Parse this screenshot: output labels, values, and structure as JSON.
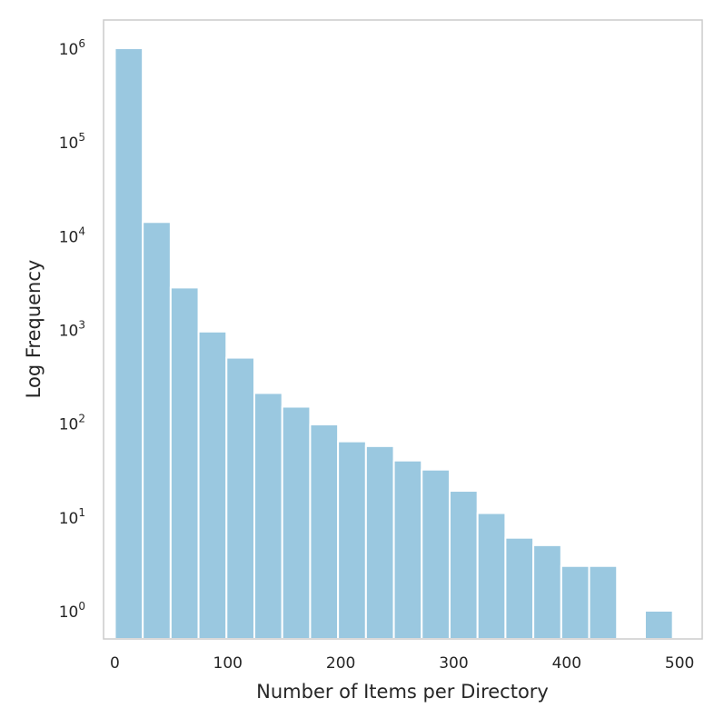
{
  "chart_data": {
    "type": "bar",
    "title": "",
    "xlabel": "Number of Items per Directory",
    "ylabel": "Log Frequency",
    "yscale": "log",
    "grid": false,
    "bar_color": "#9ac8e0",
    "frame_color": "#cccccc",
    "text_color": "#262626",
    "xlim": [
      -10,
      520
    ],
    "ylim": [
      0.5,
      2000000
    ],
    "bin_width": 24.7,
    "bins": [
      {
        "x_start": 0,
        "x_end": 24.7,
        "count": 1000000
      },
      {
        "x_start": 24.7,
        "x_end": 49.4,
        "count": 14000
      },
      {
        "x_start": 49.4,
        "x_end": 74.1,
        "count": 2800
      },
      {
        "x_start": 74.1,
        "x_end": 98.8,
        "count": 950
      },
      {
        "x_start": 98.8,
        "x_end": 123.5,
        "count": 500
      },
      {
        "x_start": 123.5,
        "x_end": 148.2,
        "count": 210
      },
      {
        "x_start": 148.2,
        "x_end": 172.9,
        "count": 150
      },
      {
        "x_start": 172.9,
        "x_end": 197.6,
        "count": 97
      },
      {
        "x_start": 197.6,
        "x_end": 222.3,
        "count": 64
      },
      {
        "x_start": 222.3,
        "x_end": 247.0,
        "count": 57
      },
      {
        "x_start": 247.0,
        "x_end": 271.7,
        "count": 40
      },
      {
        "x_start": 271.7,
        "x_end": 296.4,
        "count": 32
      },
      {
        "x_start": 296.4,
        "x_end": 321.1,
        "count": 19
      },
      {
        "x_start": 321.1,
        "x_end": 345.8,
        "count": 11
      },
      {
        "x_start": 345.8,
        "x_end": 370.5,
        "count": 6
      },
      {
        "x_start": 370.5,
        "x_end": 395.2,
        "count": 5
      },
      {
        "x_start": 395.2,
        "x_end": 419.9,
        "count": 3
      },
      {
        "x_start": 419.9,
        "x_end": 444.6,
        "count": 3
      },
      {
        "x_start": 469.3,
        "x_end": 494.0,
        "count": 1
      }
    ],
    "x_ticks": [
      {
        "value": 0,
        "label": "0"
      },
      {
        "value": 100,
        "label": "100"
      },
      {
        "value": 200,
        "label": "200"
      },
      {
        "value": 300,
        "label": "300"
      },
      {
        "value": 400,
        "label": "400"
      },
      {
        "value": 500,
        "label": "500"
      }
    ],
    "y_ticks": [
      {
        "value": 1,
        "base": "10",
        "exp": "0"
      },
      {
        "value": 10,
        "base": "10",
        "exp": "1"
      },
      {
        "value": 100,
        "base": "10",
        "exp": "2"
      },
      {
        "value": 1000,
        "base": "10",
        "exp": "3"
      },
      {
        "value": 10000,
        "base": "10",
        "exp": "4"
      },
      {
        "value": 100000,
        "base": "10",
        "exp": "5"
      },
      {
        "value": 1000000,
        "base": "10",
        "exp": "6"
      }
    ]
  }
}
